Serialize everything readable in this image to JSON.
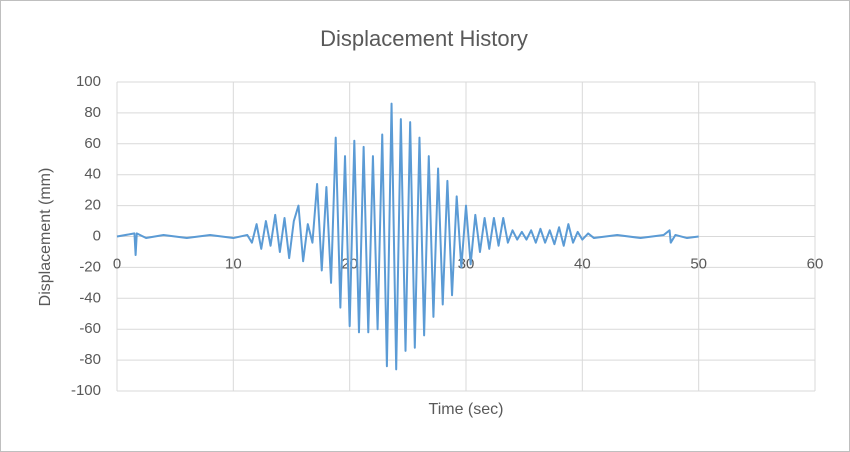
{
  "chart_data": {
    "type": "line",
    "title": "Displacement History",
    "x_label": "Time (sec)",
    "y_label": "Displacement (mm)",
    "x": [
      0,
      1.5,
      1.6,
      1.7,
      2.5,
      4,
      6,
      8,
      10,
      11.2,
      11.6,
      12.0,
      12.4,
      12.8,
      13.2,
      13.6,
      14.0,
      14.4,
      14.8,
      15.2,
      15.6,
      16.0,
      16.4,
      16.8,
      17.2,
      17.6,
      18.0,
      18.4,
      18.8,
      19.2,
      19.6,
      20.0,
      20.4,
      20.8,
      21.2,
      21.6,
      22.0,
      22.4,
      22.8,
      23.2,
      23.6,
      24.0,
      24.4,
      24.8,
      25.2,
      25.6,
      26.0,
      26.4,
      26.8,
      27.2,
      27.6,
      28.0,
      28.4,
      28.8,
      29.2,
      29.6,
      30.0,
      30.4,
      30.8,
      31.2,
      31.6,
      32.0,
      32.4,
      32.8,
      33.2,
      33.6,
      34.0,
      34.4,
      34.8,
      35.2,
      35.6,
      36.0,
      36.4,
      36.8,
      37.2,
      37.6,
      38.0,
      38.4,
      38.8,
      39.2,
      39.6,
      40.0,
      40.5,
      41,
      43,
      45,
      47,
      47.5,
      47.6,
      48,
      49,
      50
    ],
    "values": [
      0,
      2,
      -12,
      2,
      -1,
      1,
      -1,
      1,
      -1,
      1,
      -4,
      8,
      -8,
      10,
      -6,
      14,
      -10,
      12,
      -14,
      10,
      20,
      -16,
      8,
      -4,
      34,
      -22,
      32,
      -30,
      64,
      -46,
      52,
      -58,
      62,
      -62,
      58,
      -62,
      52,
      -60,
      66,
      -84,
      86,
      -86,
      76,
      -74,
      74,
      -72,
      64,
      -64,
      52,
      -52,
      44,
      -44,
      36,
      -38,
      26,
      -20,
      20,
      -18,
      14,
      -10,
      12,
      -8,
      12,
      -6,
      12,
      -4,
      4,
      -2,
      3,
      -2,
      4,
      -4,
      5,
      -4,
      4,
      -5,
      6,
      -6,
      8,
      -4,
      3,
      -2,
      2,
      -1,
      1,
      -1,
      1,
      4,
      -4,
      1,
      -1,
      0
    ],
    "color": "#5b9bd5",
    "xlim": [
      0,
      60
    ],
    "xticks": [
      0,
      10,
      20,
      30,
      40,
      50,
      60
    ],
    "ylim": [
      -100,
      100
    ],
    "yticks": [
      -100,
      -80,
      -60,
      -40,
      -20,
      0,
      20,
      40,
      60,
      80,
      100
    ],
    "grid": true
  }
}
